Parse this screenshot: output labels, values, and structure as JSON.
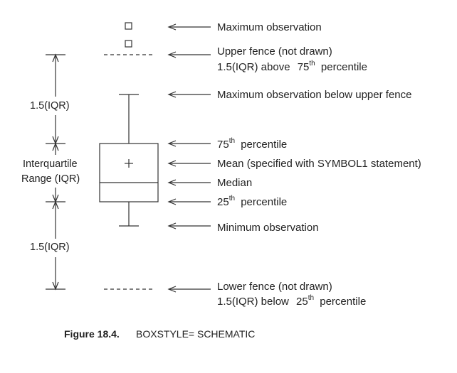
{
  "labels": {
    "max_obs": "Maximum observation",
    "upper_fence_1": "Upper fence (not drawn)",
    "upper_fence_2_pre": "1.5(IQR) above",
    "upper_fence_2_num": "75",
    "upper_fence_2_sup": "th",
    "upper_fence_2_post": "percentile",
    "max_below_fence": "Maximum observation below upper fence",
    "p75_num": "75",
    "p75_sup": "th",
    "p75_post": "percentile",
    "mean": "Mean (specified with SYMBOL1 statement)",
    "median": "Median",
    "p25_num": "25",
    "p25_sup": "th",
    "p25_post": "percentile",
    "min_obs": "Minimum observation",
    "lower_fence_1": "Lower fence (not drawn)",
    "lower_fence_2_pre": "1.5(IQR) below",
    "lower_fence_2_num": "25",
    "lower_fence_2_sup": "th",
    "lower_fence_2_post": "percentile"
  },
  "left_labels": {
    "upper_range": "1.5(IQR)",
    "iqr_line1": "Interquartile",
    "iqr_line2": "Range (IQR)",
    "lower_range": "1.5(IQR)"
  },
  "caption": {
    "number": "Figure 18.4.",
    "text": "BOXSTYLE= SCHEMATIC"
  },
  "icons": {
    "outlier": "square-marker-icon",
    "mean": "plus-marker-icon"
  }
}
